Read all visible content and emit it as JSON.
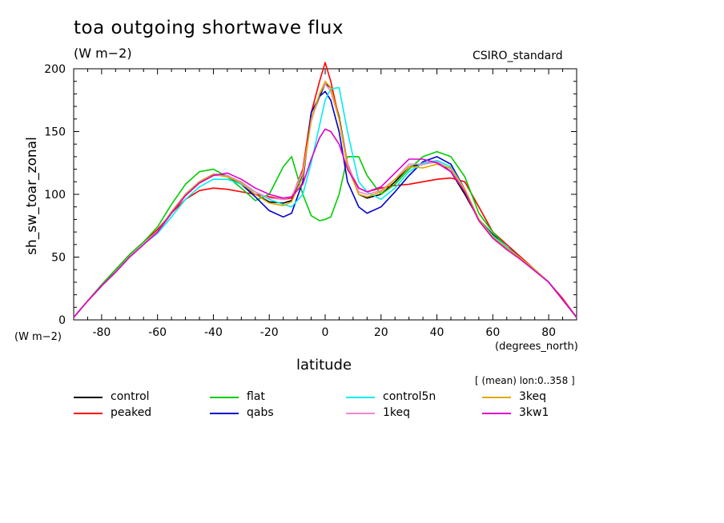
{
  "header": {
    "title": "toa outgoing shortwave flux",
    "units": "(W m−2)",
    "model": "CSIRO_standard",
    "units_left": "(W m−2)",
    "x_units": "(degrees_north)",
    "subset": "[ (mean) lon:0..358 ]"
  },
  "chart_data": {
    "type": "line",
    "title": "toa outgoing shortwave flux",
    "xlabel": "latitude",
    "ylabel": "sh_sw_toar_zonal",
    "xlim": [
      -90,
      90
    ],
    "ylim": [
      0,
      200
    ],
    "xticks": [
      -80,
      -60,
      -40,
      -20,
      0,
      20,
      40,
      60,
      80
    ],
    "yticks": [
      0,
      50,
      100,
      150,
      200
    ],
    "legend_position": "bottom",
    "x": [
      -90,
      -85,
      -80,
      -75,
      -70,
      -65,
      -60,
      -55,
      -50,
      -45,
      -40,
      -35,
      -30,
      -25,
      -20,
      -15,
      -12,
      -8,
      -5,
      -2,
      0,
      2,
      5,
      8,
      12,
      15,
      20,
      25,
      30,
      35,
      40,
      45,
      50,
      55,
      60,
      65,
      70,
      75,
      80,
      85,
      90
    ],
    "series": [
      {
        "name": "control",
        "color": "#000000",
        "values": [
          2,
          15,
          27,
          38,
          50,
          60,
          70,
          85,
          100,
          110,
          116,
          114,
          108,
          100,
          94,
          93,
          95,
          115,
          160,
          178,
          188,
          185,
          162,
          125,
          100,
          97,
          100,
          110,
          122,
          124,
          126,
          118,
          100,
          80,
          68,
          58,
          50,
          40,
          30,
          16,
          2
        ]
      },
      {
        "name": "peaked",
        "color": "#ff0000",
        "values": [
          2,
          15,
          28,
          40,
          52,
          62,
          72,
          85,
          96,
          103,
          105,
          104,
          102,
          100,
          98,
          96,
          97,
          120,
          165,
          190,
          205,
          190,
          160,
          122,
          105,
          102,
          105,
          107,
          108,
          110,
          112,
          113,
          110,
          90,
          70,
          60,
          50,
          40,
          30,
          17,
          2
        ]
      },
      {
        "name": "flat",
        "color": "#00cc00",
        "values": [
          2,
          15,
          28,
          40,
          52,
          62,
          74,
          92,
          108,
          118,
          120,
          114,
          105,
          95,
          100,
          122,
          130,
          100,
          83,
          79,
          80,
          82,
          100,
          130,
          130,
          115,
          100,
          108,
          120,
          130,
          134,
          130,
          114,
          85,
          70,
          58,
          49,
          40,
          30,
          16,
          2
        ]
      },
      {
        "name": "qabs",
        "color": "#0000cc",
        "values": [
          2,
          15,
          27,
          38,
          50,
          60,
          70,
          86,
          100,
          110,
          116,
          115,
          108,
          98,
          87,
          82,
          85,
          110,
          165,
          178,
          182,
          175,
          150,
          110,
          90,
          85,
          90,
          102,
          115,
          126,
          130,
          124,
          104,
          80,
          67,
          58,
          49,
          40,
          30,
          16,
          2
        ]
      },
      {
        "name": "control5n",
        "color": "#00eeee",
        "values": [
          2,
          15,
          27,
          38,
          50,
          60,
          69,
          82,
          96,
          106,
          112,
          112,
          108,
          102,
          96,
          92,
          90,
          100,
          125,
          155,
          175,
          184,
          185,
          150,
          110,
          102,
          96,
          105,
          118,
          125,
          127,
          122,
          104,
          80,
          67,
          58,
          49,
          40,
          30,
          16,
          2
        ]
      },
      {
        "name": "1keq",
        "color": "#ee88cc",
        "values": [
          2,
          15,
          27,
          38,
          50,
          60,
          70,
          85,
          99,
          109,
          115,
          115,
          110,
          102,
          97,
          96,
          98,
          118,
          158,
          180,
          188,
          182,
          160,
          125,
          102,
          100,
          103,
          112,
          124,
          124,
          126,
          120,
          103,
          80,
          66,
          57,
          49,
          40,
          30,
          16,
          2
        ]
      },
      {
        "name": "3keq",
        "color": "#ddaa00",
        "values": [
          2,
          15,
          27,
          38,
          50,
          60,
          70,
          86,
          100,
          110,
          116,
          114,
          109,
          100,
          93,
          91,
          94,
          114,
          160,
          180,
          190,
          185,
          160,
          122,
          100,
          98,
          102,
          112,
          122,
          121,
          124,
          121,
          104,
          80,
          66,
          57,
          49,
          40,
          30,
          16,
          2
        ]
      },
      {
        "name": "3kw1",
        "color": "#dd00cc",
        "values": [
          2,
          15,
          27,
          38,
          50,
          60,
          70,
          85,
          99,
          109,
          115,
          117,
          112,
          105,
          100,
          97,
          98,
          108,
          128,
          145,
          152,
          150,
          140,
          120,
          105,
          102,
          106,
          117,
          128,
          128,
          125,
          118,
          102,
          79,
          65,
          56,
          48,
          39,
          30,
          16,
          2
        ]
      }
    ]
  }
}
